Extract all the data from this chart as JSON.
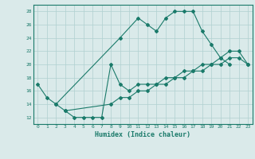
{
  "xlabel": "Humidex (Indice chaleur)",
  "background_color": "#daeaea",
  "grid_color": "#b0d0d0",
  "line_color": "#1a7a6a",
  "xlim": [
    -0.5,
    23.5
  ],
  "ylim": [
    11,
    29
  ],
  "xticks": [
    0,
    1,
    2,
    3,
    4,
    5,
    6,
    7,
    8,
    9,
    10,
    11,
    12,
    13,
    14,
    15,
    16,
    17,
    18,
    19,
    20,
    21,
    22,
    23
  ],
  "yticks": [
    12,
    14,
    16,
    18,
    20,
    22,
    24,
    26,
    28
  ],
  "line1_x": [
    0,
    1,
    2,
    9,
    11,
    12,
    13,
    14,
    15,
    16,
    17,
    18,
    19,
    20,
    21
  ],
  "line1_y": [
    17,
    15,
    14,
    24,
    27,
    26,
    25,
    27,
    28,
    28,
    28,
    25,
    23,
    21,
    20
  ],
  "line2_x": [
    2,
    3,
    8,
    9,
    10,
    11,
    12,
    13,
    14,
    15,
    16,
    17,
    18,
    19,
    20,
    21,
    22,
    23
  ],
  "line2_y": [
    14,
    13,
    14,
    15,
    15,
    16,
    16,
    17,
    17,
    18,
    18,
    19,
    19,
    20,
    20,
    21,
    21,
    20
  ],
  "line3_x": [
    3,
    4,
    5,
    6,
    7,
    8,
    9,
    10,
    11,
    12,
    13,
    14,
    15,
    16,
    17,
    18,
    19,
    20,
    21,
    22,
    23
  ],
  "line3_y": [
    13,
    12,
    12,
    12,
    12,
    20,
    17,
    16,
    17,
    17,
    17,
    18,
    18,
    19,
    19,
    20,
    20,
    21,
    22,
    22,
    20
  ]
}
